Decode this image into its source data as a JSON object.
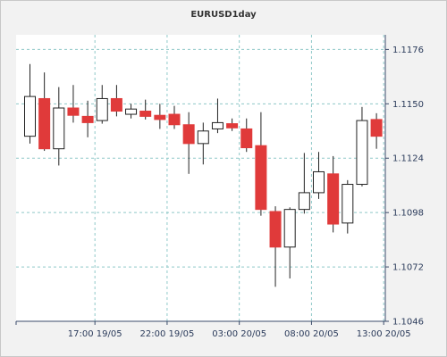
{
  "chart_data": {
    "type": "candlestick",
    "title": "EURUSD1day",
    "xlabel": "",
    "ylabel": "",
    "ylim": [
      1.1046,
      1.1183
    ],
    "y_ticks": [
      "1.1176",
      "1.1150",
      "1.1124",
      "1.1098",
      "1.1072",
      "1.1046"
    ],
    "x_ticks": [
      {
        "label": "17:00 19/05",
        "at_index": 4.5
      },
      {
        "label": "22:00 19/05",
        "at_index": 9.5
      },
      {
        "label": "03:00 20/05",
        "at_index": 14.5
      },
      {
        "label": "08:00 20/05",
        "at_index": 19.5
      },
      {
        "label": "13:00 20/05",
        "at_index": 24.5
      }
    ],
    "grid": true,
    "colors": {
      "bearish": "#e03a3a",
      "bullish": "#ffffff",
      "grid": "#8fc8c8",
      "axis": "#3a4a6a",
      "background": "#f2f2f2",
      "plot_background": "#ffffff"
    },
    "candles": [
      {
        "open": 1.11345,
        "high": 1.1169,
        "low": 1.1131,
        "close": 1.11535
      },
      {
        "open": 1.11525,
        "high": 1.1165,
        "low": 1.11275,
        "close": 1.11285
      },
      {
        "open": 1.11285,
        "high": 1.1158,
        "low": 1.11205,
        "close": 1.1148
      },
      {
        "open": 1.1148,
        "high": 1.1159,
        "low": 1.1141,
        "close": 1.11445
      },
      {
        "open": 1.1144,
        "high": 1.11515,
        "low": 1.1134,
        "close": 1.1141
      },
      {
        "open": 1.1142,
        "high": 1.1159,
        "low": 1.11405,
        "close": 1.11525
      },
      {
        "open": 1.11525,
        "high": 1.1159,
        "low": 1.1144,
        "close": 1.11465
      },
      {
        "open": 1.1145,
        "high": 1.115,
        "low": 1.1143,
        "close": 1.11475
      },
      {
        "open": 1.11465,
        "high": 1.1152,
        "low": 1.11425,
        "close": 1.1144
      },
      {
        "open": 1.11445,
        "high": 1.115,
        "low": 1.1138,
        "close": 1.11425
      },
      {
        "open": 1.1145,
        "high": 1.1149,
        "low": 1.1138,
        "close": 1.114
      },
      {
        "open": 1.114,
        "high": 1.1146,
        "low": 1.11165,
        "close": 1.1131
      },
      {
        "open": 1.1131,
        "high": 1.1141,
        "low": 1.1121,
        "close": 1.1137
      },
      {
        "open": 1.1138,
        "high": 1.11525,
        "low": 1.1136,
        "close": 1.1141
      },
      {
        "open": 1.11405,
        "high": 1.1143,
        "low": 1.1137,
        "close": 1.11385
      },
      {
        "open": 1.1138,
        "high": 1.1143,
        "low": 1.1127,
        "close": 1.1129
      },
      {
        "open": 1.113,
        "high": 1.1146,
        "low": 1.10965,
        "close": 1.10995
      },
      {
        "open": 1.10985,
        "high": 1.1101,
        "low": 1.10625,
        "close": 1.10815
      },
      {
        "open": 1.10815,
        "high": 1.11005,
        "low": 1.10665,
        "close": 1.10995
      },
      {
        "open": 1.10995,
        "high": 1.11265,
        "low": 1.10975,
        "close": 1.11075
      },
      {
        "open": 1.11075,
        "high": 1.1127,
        "low": 1.11045,
        "close": 1.11175
      },
      {
        "open": 1.11165,
        "high": 1.1125,
        "low": 1.10885,
        "close": 1.10925
      },
      {
        "open": 1.1093,
        "high": 1.11135,
        "low": 1.1088,
        "close": 1.11115
      },
      {
        "open": 1.11115,
        "high": 1.11485,
        "low": 1.11105,
        "close": 1.1142
      },
      {
        "open": 1.11425,
        "high": 1.11455,
        "low": 1.11285,
        "close": 1.11345
      }
    ]
  }
}
